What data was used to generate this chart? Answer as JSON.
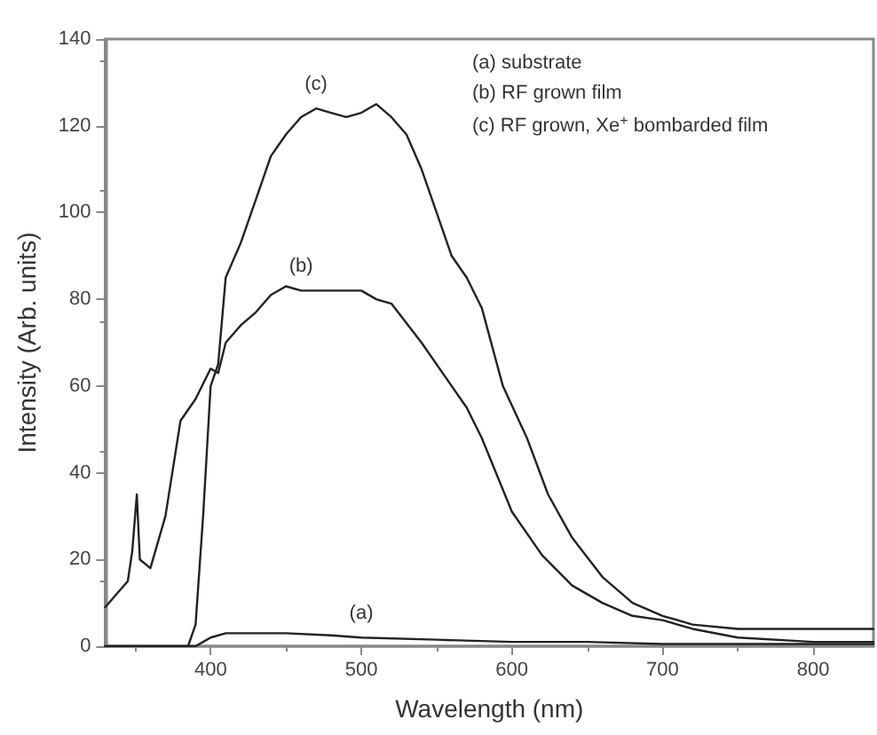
{
  "chart_data": {
    "type": "line",
    "xlabel": "Wavelength (nm)",
    "ylabel": "Intensity (Arb. units)",
    "xlim": [
      330,
      840
    ],
    "xticks": [
      400,
      500,
      600,
      700,
      800
    ],
    "ylim": [
      0,
      140
    ],
    "yticks": [
      0,
      20,
      40,
      60,
      80,
      100,
      120,
      140
    ],
    "grid": false,
    "marker": "none",
    "line_style": "solid",
    "series": [
      {
        "color": "#222222",
        "x": [
          330,
          390,
          395,
          400,
          410,
          420,
          450,
          480,
          500,
          550,
          600,
          650,
          700,
          750,
          800,
          840
        ],
        "values": [
          0,
          0,
          1,
          2,
          3,
          3,
          3,
          2.5,
          2,
          1.5,
          1,
          1,
          0.5,
          0.5,
          0.5,
          0.5
        ]
      },
      {
        "color": "#222222",
        "x": [
          330,
          340,
          345,
          348,
          351,
          353,
          360,
          370,
          380,
          390,
          400,
          405,
          410,
          420,
          430,
          440,
          450,
          460,
          480,
          500,
          510,
          520,
          540,
          560,
          570,
          580,
          600,
          620,
          640,
          660,
          680,
          700,
          720,
          750,
          800,
          840
        ],
        "values": [
          9,
          13,
          15,
          22,
          35,
          20,
          18,
          30,
          52,
          57,
          64,
          63,
          70,
          74,
          77,
          81,
          83,
          82,
          82,
          82,
          80,
          79,
          70,
          60,
          55,
          48,
          31,
          21,
          14,
          10,
          7,
          6,
          4,
          2,
          1,
          1
        ]
      },
      {
        "color": "#222222",
        "x": [
          330,
          385,
          390,
          395,
          400,
          405,
          410,
          420,
          430,
          440,
          450,
          460,
          470,
          480,
          490,
          500,
          510,
          520,
          530,
          540,
          550,
          560,
          570,
          580,
          594,
          610,
          624,
          640,
          660,
          680,
          700,
          720,
          750,
          800,
          840
        ],
        "values": [
          0,
          0,
          5,
          30,
          60,
          65,
          85,
          93,
          103,
          113,
          118,
          122,
          124,
          123,
          122,
          123,
          125,
          122,
          118,
          110,
          100,
          90,
          85,
          78,
          60,
          48,
          35,
          25,
          16,
          10,
          7,
          5,
          4,
          4,
          4
        ]
      }
    ],
    "annotations": [
      {
        "text": "(a)",
        "x": 500,
        "y": 2
      },
      {
        "text": "(b)",
        "x": 460,
        "y": 82
      },
      {
        "text": "(c)",
        "x": 470,
        "y": 124
      },
      "(a) substrate",
      "(b) RF grown film",
      "(c) RF grown, Xe$^{+}$ bombarded film"
    ]
  }
}
